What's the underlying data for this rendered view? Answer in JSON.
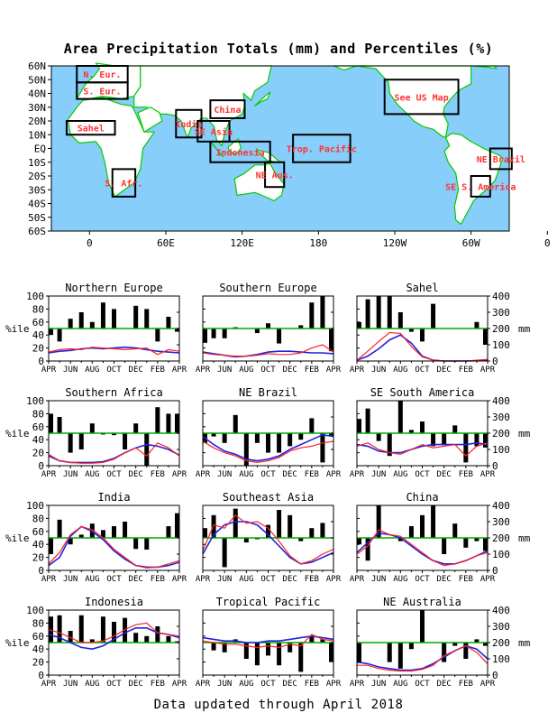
{
  "title": "Area Precipitation Totals (mm) and Percentiles (%)",
  "footer": "Data updated through April 2018",
  "colors": {
    "ocean": "#87cefa",
    "land": "#ffffff",
    "coast": "#00cc00",
    "region_label": "#ff3333",
    "percentile_line": "#00aa00",
    "total_line": "#ff2222",
    "normal_line": "#2222dd",
    "bars": "#000000"
  },
  "map": {
    "lat_labels": [
      "60N",
      "50N",
      "40N",
      "30N",
      "20N",
      "10N",
      "EQ",
      "10S",
      "20S",
      "30S",
      "40S",
      "50S",
      "60S"
    ],
    "lon_labels": [
      "0",
      "60E",
      "120E",
      "180",
      "120W",
      "60W",
      "0"
    ],
    "regions": [
      {
        "label": "N. Eur.",
        "lon": [
          -10,
          30
        ],
        "lat": [
          48,
          60
        ]
      },
      {
        "label": "S. Eur.",
        "lon": [
          -10,
          30
        ],
        "lat": [
          36,
          48
        ]
      },
      {
        "label": "Sahel",
        "lon": [
          -18,
          20
        ],
        "lat": [
          10,
          20
        ]
      },
      {
        "label": "S. Afr.",
        "lon": [
          18,
          36
        ],
        "lat": [
          -35,
          -15
        ]
      },
      {
        "label": "India",
        "lon": [
          68,
          88
        ],
        "lat": [
          8,
          28
        ]
      },
      {
        "label": "China",
        "lon": [
          95,
          122
        ],
        "lat": [
          22,
          35
        ]
      },
      {
        "label": "SE Asia",
        "lon": [
          85,
          110
        ],
        "lat": [
          5,
          20
        ]
      },
      {
        "label": "Indonesia",
        "lon": [
          95,
          142
        ],
        "lat": [
          -10,
          5
        ]
      },
      {
        "label": "Trop. Pacific",
        "lon": [
          160,
          205
        ],
        "lat": [
          -10,
          10
        ]
      },
      {
        "label": "NE Aus.",
        "lon": [
          138,
          153
        ],
        "lat": [
          -28,
          -10
        ]
      },
      {
        "label": "See US Map",
        "lon": [
          232,
          290
        ],
        "lat": [
          25,
          50
        ]
      },
      {
        "label": "NE Brazil",
        "lon": [
          315,
          332
        ],
        "lat": [
          -15,
          0
        ]
      },
      {
        "label": "SE S. America",
        "lon": [
          300,
          315
        ],
        "lat": [
          -35,
          -20
        ]
      }
    ]
  },
  "axes": {
    "pct_label": "%ile",
    "mm_label": "mm",
    "pct_ticks": [
      "0",
      "20",
      "40",
      "60",
      "80",
      "100"
    ],
    "mm_ticks": [
      "0",
      "100",
      "200",
      "300",
      "400"
    ],
    "x_ticks": [
      "APR",
      "JUN",
      "AUG",
      "OCT",
      "DEC",
      "FEB",
      "APR"
    ]
  },
  "chart_data": [
    {
      "type": "bar+line",
      "title": "Northern Europe",
      "months": [
        "APR",
        "MAY",
        "JUN",
        "JUL",
        "AUG",
        "SEP",
        "OCT",
        "NOV",
        "DEC",
        "JAN",
        "FEB",
        "MAR",
        "APR"
      ],
      "percentiles": [
        40,
        30,
        65,
        75,
        60,
        90,
        80,
        50,
        85,
        80,
        30,
        68,
        45
      ],
      "total_mm": [
        55,
        70,
        75,
        70,
        85,
        80,
        75,
        70,
        75,
        80,
        40,
        70,
        60
      ],
      "normal_mm": [
        50,
        60,
        65,
        75,
        80,
        75,
        80,
        85,
        80,
        70,
        60,
        55,
        50
      ]
    },
    {
      "type": "bar+line",
      "title": "Southern Europe",
      "months": [
        "APR",
        "MAY",
        "JUN",
        "JUL",
        "AUG",
        "SEP",
        "OCT",
        "NOV",
        "DEC",
        "JAN",
        "FEB",
        "MAR",
        "APR"
      ],
      "percentiles": [
        28,
        35,
        35,
        52,
        50,
        43,
        58,
        27,
        50,
        55,
        90,
        100,
        15
      ],
      "total_mm": [
        50,
        40,
        35,
        30,
        30,
        35,
        45,
        40,
        40,
        50,
        80,
        100,
        55
      ],
      "normal_mm": [
        55,
        45,
        35,
        25,
        30,
        40,
        55,
        60,
        60,
        55,
        50,
        50,
        45
      ]
    },
    {
      "type": "bar+line",
      "title": "Sahel",
      "months": [
        "APR",
        "MAY",
        "JUN",
        "JUL",
        "AUG",
        "SEP",
        "OCT",
        "NOV",
        "DEC",
        "JAN",
        "FEB",
        "MAR",
        "APR"
      ],
      "percentiles": [
        60,
        95,
        100,
        100,
        75,
        45,
        30,
        88,
        50,
        50,
        50,
        60,
        25
      ],
      "total_mm": [
        5,
        60,
        120,
        175,
        170,
        90,
        25,
        5,
        0,
        0,
        0,
        5,
        10
      ],
      "normal_mm": [
        5,
        30,
        75,
        130,
        160,
        110,
        30,
        5,
        0,
        0,
        0,
        2,
        5
      ]
    },
    {
      "type": "bar+line",
      "title": "Southern Africa",
      "months": [
        "APR",
        "MAY",
        "JUN",
        "JUL",
        "AUG",
        "SEP",
        "OCT",
        "NOV",
        "DEC",
        "JAN",
        "FEB",
        "MAR",
        "APR"
      ],
      "percentiles": [
        80,
        75,
        20,
        25,
        65,
        48,
        47,
        25,
        65,
        0,
        90,
        80,
        80
      ],
      "total_mm": [
        70,
        30,
        20,
        15,
        15,
        20,
        40,
        80,
        110,
        60,
        140,
        110,
        60
      ],
      "normal_mm": [
        60,
        30,
        20,
        20,
        20,
        25,
        45,
        80,
        110,
        130,
        120,
        100,
        65
      ]
    },
    {
      "type": "bar+line",
      "title": "NE Brazil",
      "months": [
        "APR",
        "MAY",
        "JUN",
        "JUL",
        "AUG",
        "SEP",
        "OCT",
        "NOV",
        "DEC",
        "JAN",
        "FEB",
        "MAR",
        "APR"
      ],
      "percentiles": [
        35,
        45,
        35,
        78,
        0,
        35,
        20,
        20,
        30,
        40,
        73,
        5,
        45
      ],
      "total_mm": [
        150,
        110,
        80,
        60,
        30,
        20,
        30,
        50,
        90,
        110,
        120,
        140,
        150
      ],
      "normal_mm": [
        180,
        130,
        90,
        70,
        40,
        30,
        40,
        60,
        100,
        130,
        160,
        190,
        180
      ]
    },
    {
      "type": "bar+line",
      "title": "SE South America",
      "months": [
        "APR",
        "MAY",
        "JUN",
        "JUL",
        "AUG",
        "SEP",
        "OCT",
        "NOV",
        "DEC",
        "JAN",
        "FEB",
        "MAR",
        "APR"
      ],
      "percentiles": [
        72,
        88,
        38,
        15,
        100,
        55,
        68,
        30,
        33,
        62,
        5,
        30,
        28
      ],
      "total_mm": [
        120,
        140,
        100,
        80,
        70,
        100,
        130,
        110,
        120,
        130,
        60,
        120,
        140
      ],
      "normal_mm": [
        130,
        120,
        90,
        80,
        80,
        100,
        120,
        130,
        130,
        130,
        130,
        140,
        130
      ]
    },
    {
      "type": "bar+line",
      "title": "India",
      "months": [
        "APR",
        "MAY",
        "JUN",
        "JUL",
        "AUG",
        "SEP",
        "OCT",
        "NOV",
        "DEC",
        "JAN",
        "FEB",
        "MAR",
        "APR"
      ],
      "percentiles": [
        25,
        78,
        40,
        55,
        72,
        62,
        68,
        75,
        33,
        32,
        50,
        68,
        88
      ],
      "total_mm": [
        40,
        110,
        220,
        270,
        250,
        200,
        130,
        80,
        30,
        15,
        20,
        40,
        60
      ],
      "normal_mm": [
        30,
        80,
        210,
        270,
        240,
        190,
        120,
        70,
        30,
        20,
        20,
        30,
        50
      ]
    },
    {
      "type": "bar+line",
      "title": "Southeast Asia",
      "months": [
        "APR",
        "MAY",
        "JUN",
        "JUL",
        "AUG",
        "SEP",
        "OCT",
        "NOV",
        "DEC",
        "JAN",
        "FEB",
        "MAR",
        "APR"
      ],
      "percentiles": [
        65,
        85,
        5,
        95,
        43,
        48,
        70,
        93,
        85,
        45,
        65,
        73,
        50
      ],
      "total_mm": [
        120,
        280,
        260,
        340,
        290,
        300,
        260,
        180,
        90,
        40,
        60,
        100,
        130
      ],
      "normal_mm": [
        100,
        220,
        280,
        300,
        300,
        280,
        220,
        150,
        80,
        40,
        50,
        80,
        110
      ]
    },
    {
      "type": "bar+line",
      "title": "China",
      "months": [
        "APR",
        "MAY",
        "JUN",
        "JUL",
        "AUG",
        "SEP",
        "OCT",
        "NOV",
        "DEC",
        "JAN",
        "FEB",
        "MAR",
        "APR"
      ],
      "percentiles": [
        40,
        15,
        100,
        50,
        45,
        68,
        85,
        100,
        25,
        72,
        35,
        45,
        30
      ],
      "total_mm": [
        100,
        150,
        250,
        220,
        210,
        160,
        110,
        60,
        30,
        40,
        60,
        90,
        110
      ],
      "normal_mm": [
        110,
        170,
        230,
        220,
        200,
        150,
        100,
        60,
        40,
        40,
        60,
        90,
        120
      ]
    },
    {
      "type": "bar+line",
      "title": "Indonesia",
      "months": [
        "APR",
        "MAY",
        "JUN",
        "JUL",
        "AUG",
        "SEP",
        "OCT",
        "NOV",
        "DEC",
        "JAN",
        "FEB",
        "MAR",
        "APR"
      ],
      "percentiles": [
        90,
        92,
        68,
        92,
        55,
        90,
        82,
        88,
        65,
        60,
        75,
        60,
        52
      ],
      "total_mm": [
        280,
        260,
        230,
        200,
        200,
        210,
        240,
        280,
        310,
        320,
        260,
        250,
        240
      ],
      "normal_mm": [
        250,
        230,
        200,
        170,
        160,
        180,
        220,
        260,
        290,
        290,
        260,
        250,
        230
      ]
    },
    {
      "type": "bar+line",
      "title": "Tropical Pacific",
      "months": [
        "APR",
        "MAY",
        "JUN",
        "JUL",
        "AUG",
        "SEP",
        "OCT",
        "NOV",
        "DEC",
        "JAN",
        "FEB",
        "MAR",
        "APR"
      ],
      "percentiles": [
        50,
        38,
        35,
        55,
        25,
        15,
        30,
        15,
        35,
        5,
        60,
        55,
        20
      ],
      "total_mm": [
        210,
        200,
        190,
        190,
        180,
        170,
        180,
        170,
        190,
        180,
        250,
        220,
        210
      ],
      "normal_mm": [
        230,
        220,
        210,
        210,
        200,
        200,
        210,
        210,
        220,
        230,
        240,
        230,
        220
      ]
    },
    {
      "type": "bar+line",
      "title": "NE Australia",
      "months": [
        "APR",
        "MAY",
        "JUN",
        "JUL",
        "AUG",
        "SEP",
        "OCT",
        "NOV",
        "DEC",
        "JAN",
        "FEB",
        "MAR",
        "APR"
      ],
      "percentiles": [
        20,
        50,
        50,
        20,
        10,
        40,
        100,
        50,
        20,
        45,
        25,
        55,
        45
      ],
      "total_mm": [
        60,
        60,
        40,
        30,
        25,
        25,
        35,
        60,
        120,
        150,
        180,
        140,
        70
      ],
      "normal_mm": [
        80,
        70,
        50,
        40,
        30,
        30,
        40,
        70,
        110,
        150,
        180,
        160,
        100
      ]
    }
  ]
}
